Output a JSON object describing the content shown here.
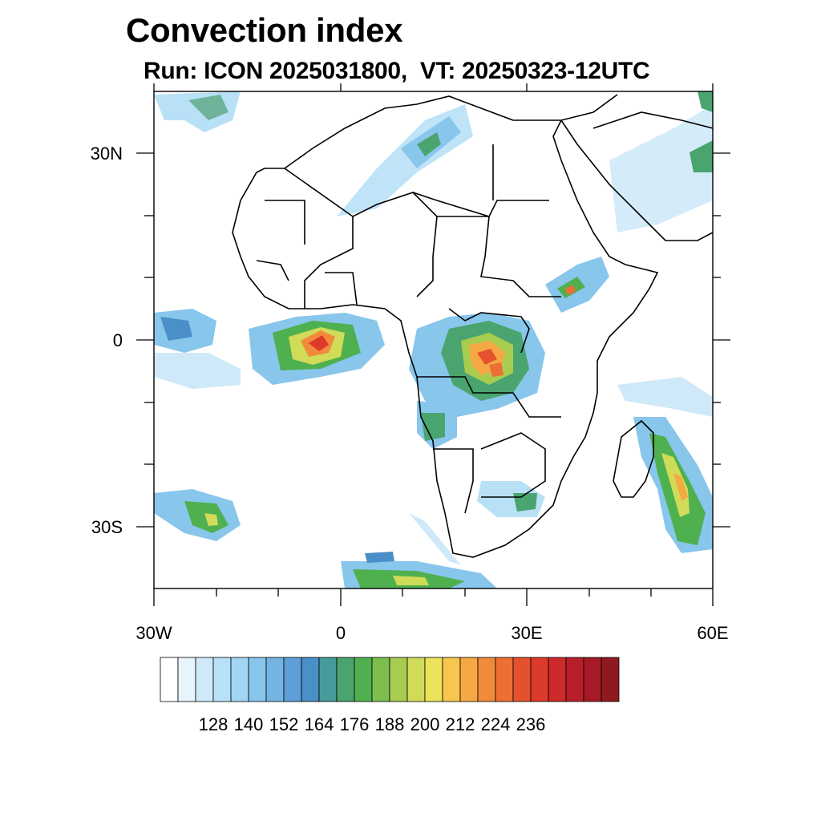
{
  "title": "Convection index",
  "subtitle": "Run: ICON 2025031800,  VT: 20250323-12UTC",
  "map": {
    "lon_range": [
      -30,
      60
    ],
    "lat_range": [
      -40,
      40
    ],
    "lon_tick_labels": [
      "30W",
      "0",
      "30E",
      "60E"
    ],
    "lat_tick_labels": [
      "30N",
      "0",
      "30S"
    ]
  },
  "colorbar": {
    "labels": [
      "128",
      "140",
      "152",
      "164",
      "176",
      "188",
      "200",
      "212",
      "224",
      "236"
    ],
    "colors": [
      "#ffffff",
      "#e6f4fb",
      "#cfe9f8",
      "#b8e0f6",
      "#a0d6f3",
      "#88c6ec",
      "#74b4e3",
      "#5f9fd8",
      "#4b8fc8",
      "#469b9a",
      "#4aa46f",
      "#4fb04f",
      "#7cbd4e",
      "#a8cc50",
      "#d0db57",
      "#ece35a",
      "#f6c64f",
      "#f6a844",
      "#f18b3c",
      "#ec6f33",
      "#e4522d",
      "#dc3a2b",
      "#cd2a2b",
      "#b81f2a",
      "#a51a26",
      "#8e1a1f"
    ]
  }
}
